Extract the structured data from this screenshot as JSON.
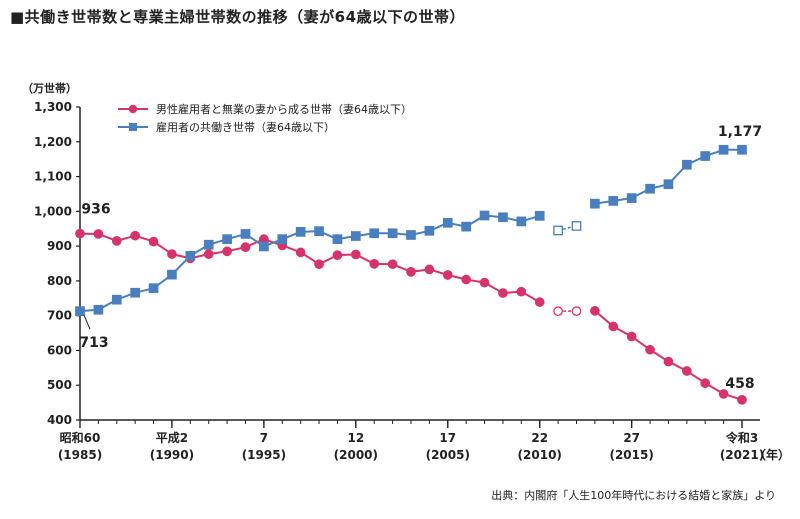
{
  "title": "■共働き世帯数と専業主婦世帯数の推移（妻が64歳以下の世帯）",
  "source": "出典：内閣府「人生100年時代における結婚と家族」より",
  "chart_data": {
    "type": "line",
    "ylabel": "（万世帯）",
    "xunit": "（年）",
    "ylim": [
      400,
      1300
    ],
    "yticks": [
      "1,300",
      "1,200",
      "1,100",
      "1,000",
      "900",
      "800",
      "700",
      "600",
      "500",
      "400"
    ],
    "xticks": [
      {
        "year": 1985,
        "line1": "昭和60",
        "line2": "(1985)"
      },
      {
        "year": 1990,
        "line1": "平成2",
        "line2": "(1990)"
      },
      {
        "year": 1995,
        "line1": "7",
        "line2": "(1995)"
      },
      {
        "year": 2000,
        "line1": "12",
        "line2": "(2000)"
      },
      {
        "year": 2005,
        "line1": "17",
        "line2": "(2005)"
      },
      {
        "year": 2010,
        "line1": "22",
        "line2": "(2010)"
      },
      {
        "year": 2015,
        "line1": "27",
        "line2": "(2015)"
      },
      {
        "year": 2021,
        "line1": "令和3",
        "line2": "(2021)"
      }
    ],
    "x": [
      1985,
      1986,
      1987,
      1988,
      1989,
      1990,
      1991,
      1992,
      1993,
      1994,
      1995,
      1996,
      1997,
      1998,
      1999,
      2000,
      2001,
      2002,
      2003,
      2004,
      2005,
      2006,
      2007,
      2008,
      2009,
      2010,
      2011,
      2012,
      2013,
      2014,
      2015,
      2016,
      2017,
      2018,
      2019,
      2020,
      2021
    ],
    "series": [
      {
        "name": "男性雇用者と無業の妻から成る世帯（妻64歳以下）",
        "color": "#d6336c",
        "marker": "circle",
        "values": [
          936,
          935,
          915,
          930,
          913,
          877,
          865,
          877,
          885,
          897,
          920,
          902,
          882,
          848,
          874,
          876,
          849,
          848,
          826,
          833,
          817,
          804,
          795,
          765,
          769,
          739,
          713,
          713,
          714,
          669,
          640,
          602,
          568,
          541,
          506,
          475,
          458
        ],
        "hollow_years": [
          2011,
          2012
        ]
      },
      {
        "name": "雇用者の共働き世帯（妻64歳以下）",
        "color": "#4a7fbf",
        "marker": "square",
        "values": [
          713,
          717,
          746,
          766,
          779,
          818,
          872,
          904,
          920,
          935,
          899,
          920,
          941,
          943,
          920,
          929,
          937,
          937,
          932,
          944,
          967,
          956,
          988,
          983,
          971,
          987,
          945,
          958,
          1022,
          1030,
          1038,
          1065,
          1078,
          1134,
          1159,
          1177,
          1177
        ],
        "hollow_years": [
          2011,
          2012
        ]
      }
    ],
    "gap_after": 2012,
    "annotations": [
      {
        "text": "936",
        "year": 1985,
        "series": 0
      },
      {
        "text": "713",
        "year": 1985,
        "series": 1
      },
      {
        "text": "1,177",
        "year": 2021,
        "series": 1
      },
      {
        "text": "458",
        "year": 2021,
        "series": 0
      }
    ]
  }
}
